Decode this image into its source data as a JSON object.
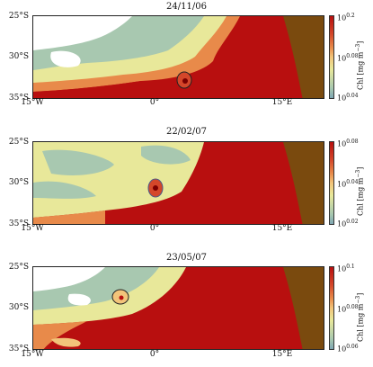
{
  "panels": [
    {
      "title": "24/11/06",
      "cbar_top": "10",
      "cbar_top_exp": "0.2",
      "cbar_mid": "10",
      "cbar_mid_exp": "0.08",
      "cbar_bot": "10",
      "cbar_bot_exp": "0.04"
    },
    {
      "title": "22/02/07",
      "cbar_top": "10",
      "cbar_top_exp": "0.08",
      "cbar_mid": "10",
      "cbar_mid_exp": "0.04",
      "cbar_bot": "10",
      "cbar_bot_exp": "0.02"
    },
    {
      "title": "23/05/07",
      "cbar_top": "10",
      "cbar_top_exp": "0.1",
      "cbar_mid": "10",
      "cbar_mid_exp": "0.08",
      "cbar_bot": "10",
      "cbar_bot_exp": "0.06"
    }
  ],
  "lat_labels": [
    "25°S",
    "30°S",
    "35°S"
  ],
  "lon_labels": [
    "15°W",
    "0°",
    "15°E"
  ],
  "cbar_label": "Chl [mg m",
  "cbar_label_sup": "−3",
  "cbar_label_end": "]",
  "colors": {
    "land": "#7a4a0e",
    "high": "#b80f0f",
    "mid": "#e8e89a",
    "low": "#a8c8b0",
    "cloud": "#ffffff"
  }
}
